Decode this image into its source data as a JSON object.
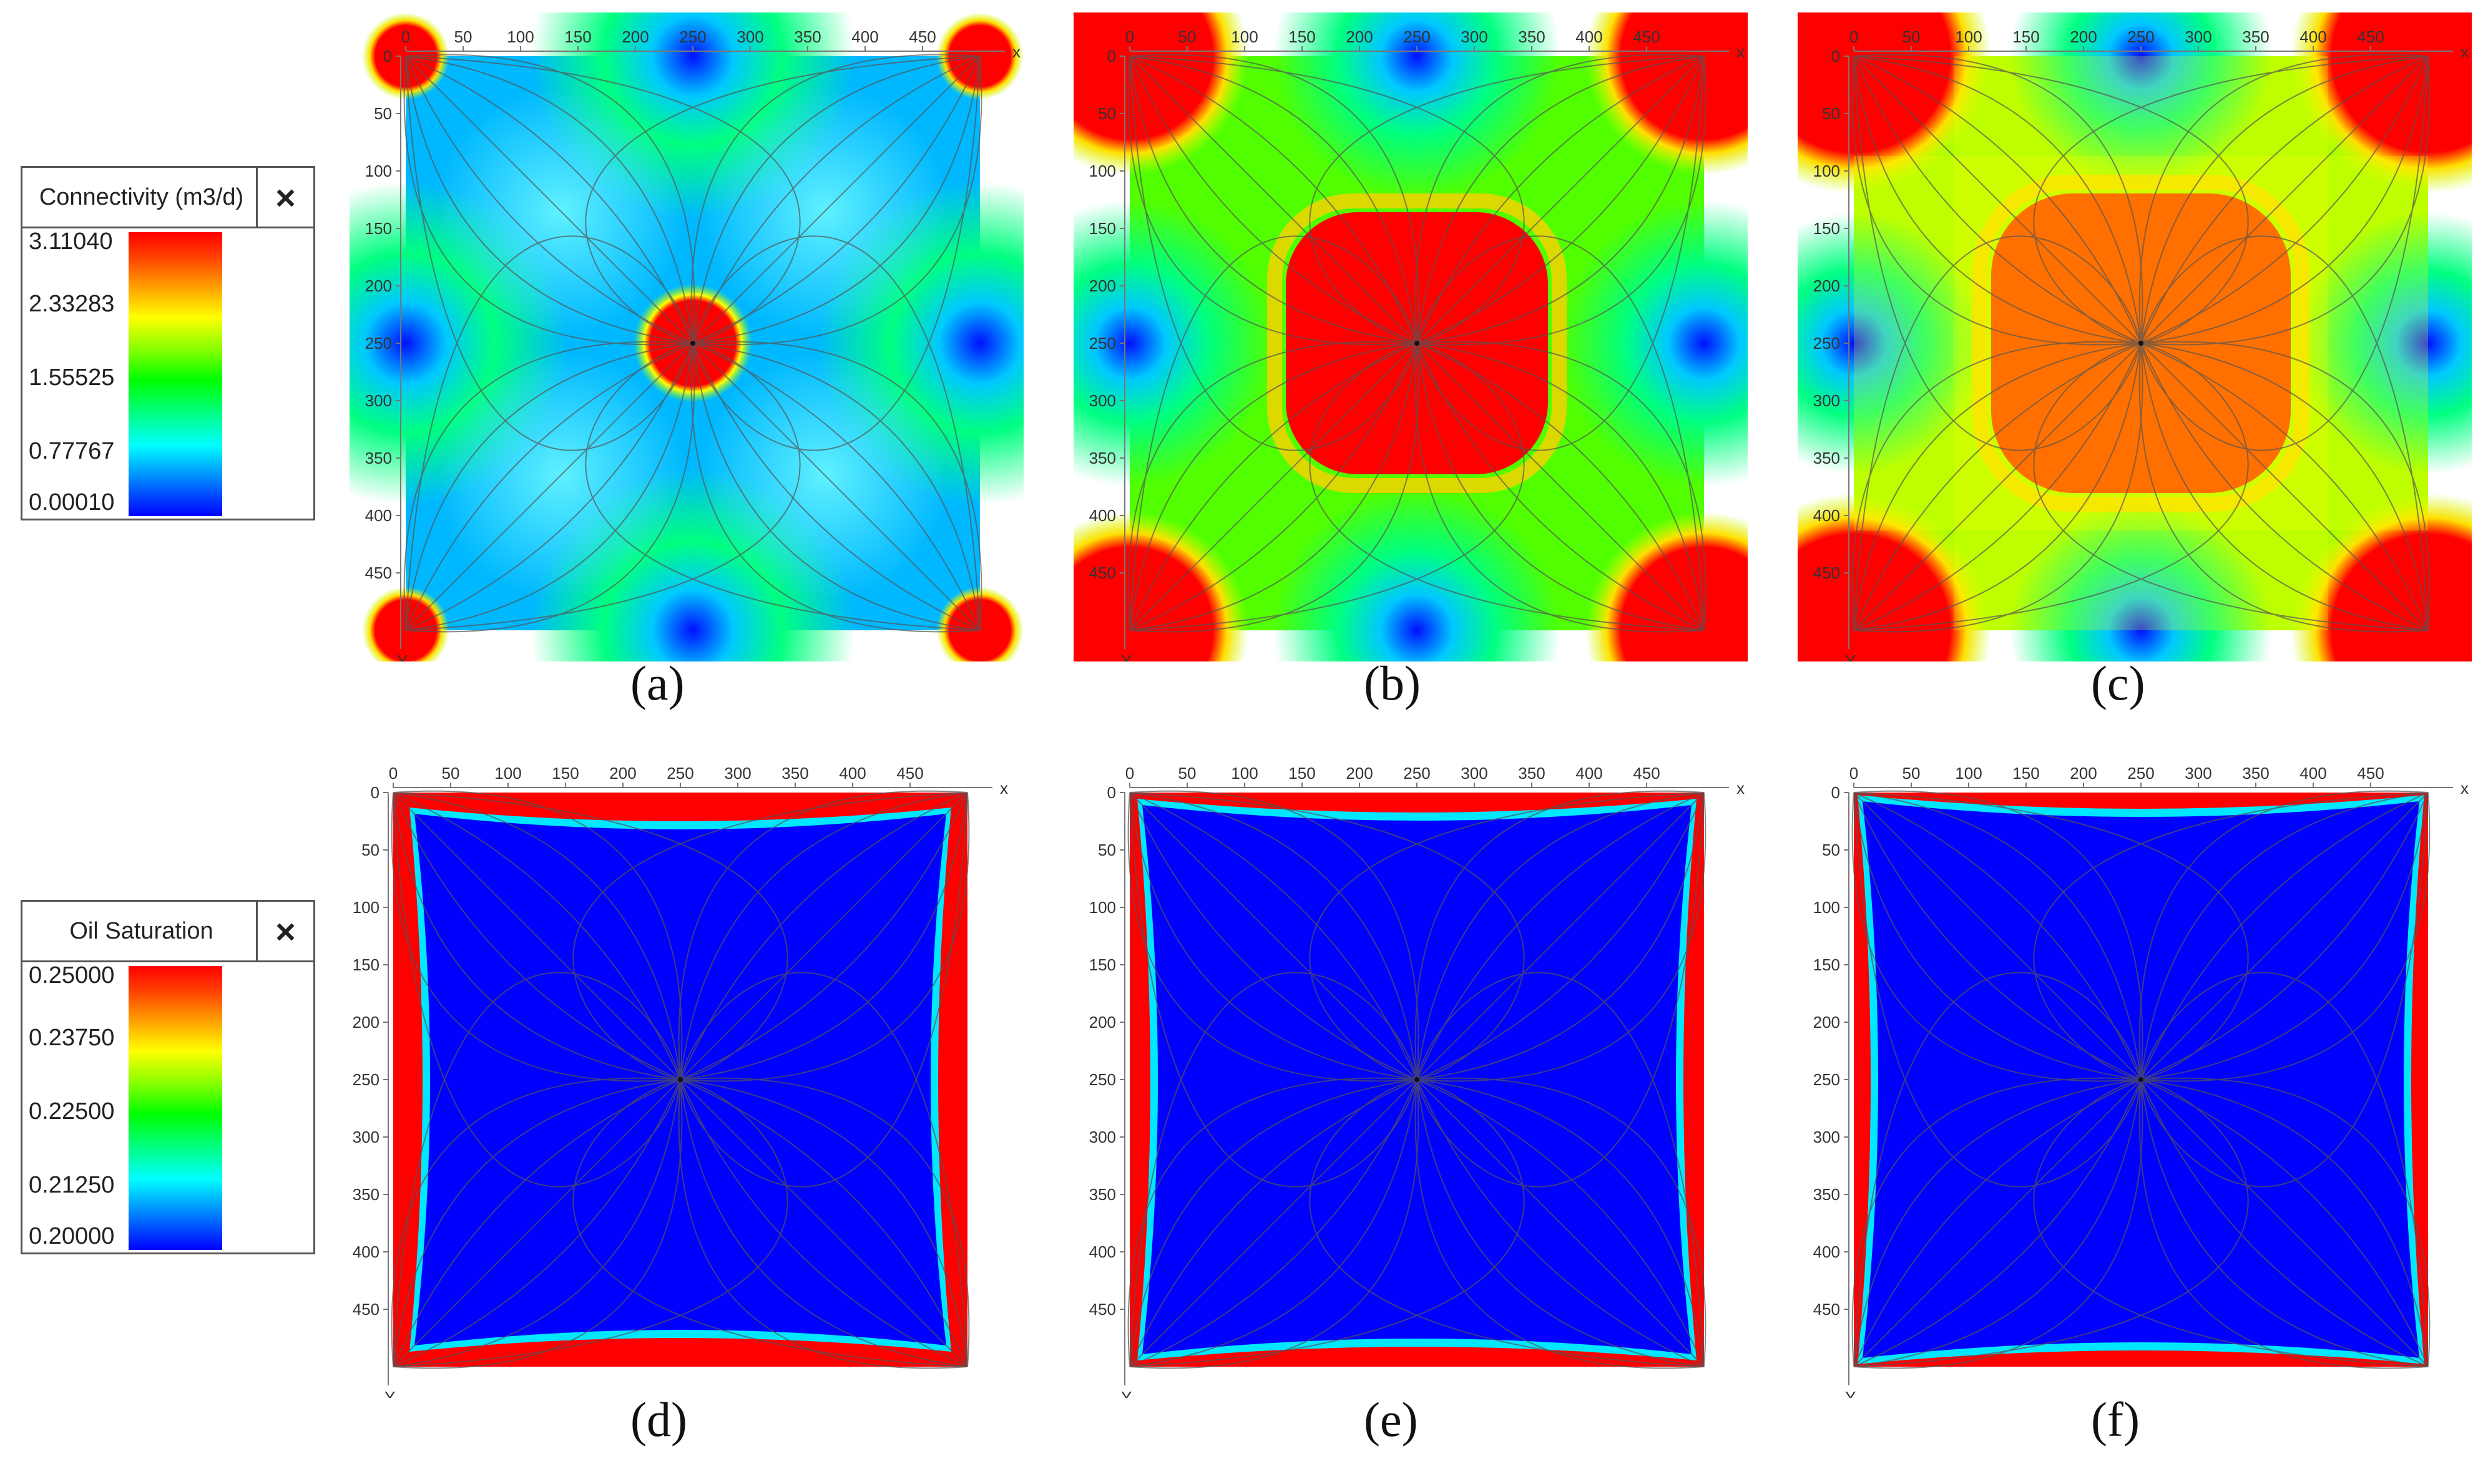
{
  "legends": [
    {
      "title": "Connectivity (m3/d)",
      "close": "×",
      "values": [
        "3.11040",
        "2.33283",
        "1.55525",
        "0.77767",
        "0.00010"
      ]
    },
    {
      "title": "Oil Saturation",
      "close": "×",
      "values": [
        "0.25000",
        "0.23750",
        "0.22500",
        "0.21250",
        "0.20000"
      ]
    }
  ],
  "axis": {
    "x_letter": "x",
    "y_letter": "Y",
    "x_ticks": [
      "0",
      "50",
      "100",
      "150",
      "200",
      "250",
      "300",
      "350",
      "400",
      "450"
    ],
    "y_ticks": [
      "0",
      "50",
      "100",
      "150",
      "200",
      "250",
      "300",
      "350",
      "400",
      "450"
    ]
  },
  "panels": [
    {
      "caption": "(a)",
      "field": "connectivity",
      "variant": "a"
    },
    {
      "caption": "(b)",
      "field": "connectivity",
      "variant": "b"
    },
    {
      "caption": "(c)",
      "field": "connectivity",
      "variant": "c"
    },
    {
      "caption": "(d)",
      "field": "saturation",
      "variant": "d"
    },
    {
      "caption": "(e)",
      "field": "saturation",
      "variant": "e"
    },
    {
      "caption": "(f)",
      "field": "saturation",
      "variant": "f"
    }
  ],
  "colors": {
    "scale": [
      "#0000ff",
      "#00ffff",
      "#00ff00",
      "#7fff00",
      "#ffff00",
      "#ff0000"
    ],
    "streamline": "#555555"
  }
}
